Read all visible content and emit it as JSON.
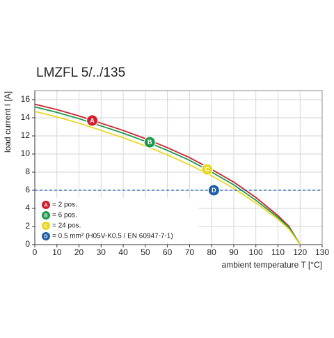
{
  "chart_data": {
    "type": "line",
    "title": "LMZFL 5/../135",
    "x_label": "ambient temperature T [°C]",
    "y_label": "load current I [A]",
    "xlim": [
      0,
      130
    ],
    "ylim": [
      0,
      17
    ],
    "xticks": [
      0,
      10,
      20,
      30,
      40,
      50,
      60,
      70,
      80,
      90,
      100,
      110,
      120,
      130
    ],
    "yticks": [
      0,
      2,
      4,
      6,
      8,
      10,
      12,
      14,
      16
    ],
    "grid": true,
    "series": [
      {
        "name": "= 2 pos.",
        "color": "#d0202e",
        "x": [
          0,
          10,
          20,
          30,
          40,
          50,
          60,
          70,
          80,
          90,
          100,
          110,
          115,
          120
        ],
        "values": [
          15.5,
          14.9,
          14.2,
          13.4,
          12.6,
          11.7,
          10.7,
          9.6,
          8.3,
          6.9,
          5.2,
          3.2,
          2.0,
          0
        ],
        "marker": {
          "label": "A",
          "x": 26,
          "y": 13.7
        }
      },
      {
        "name": "= 6 pos.",
        "color": "#1a9a4a",
        "x": [
          0,
          10,
          20,
          30,
          40,
          50,
          60,
          70,
          80,
          90,
          100,
          110,
          115,
          120
        ],
        "values": [
          15.2,
          14.6,
          13.9,
          13.1,
          12.3,
          11.4,
          10.4,
          9.3,
          8.0,
          6.6,
          4.9,
          3.0,
          1.9,
          0
        ],
        "marker": {
          "label": "B",
          "x": 52,
          "y": 11.3
        }
      },
      {
        "name": "= 24 pos.",
        "color": "#e8d81e",
        "x": [
          0,
          10,
          20,
          30,
          40,
          50,
          60,
          70,
          80,
          90,
          100,
          110,
          115,
          120
        ],
        "values": [
          14.7,
          14.1,
          13.4,
          12.6,
          11.8,
          10.9,
          9.9,
          8.8,
          7.6,
          6.2,
          4.6,
          2.8,
          1.7,
          0
        ],
        "marker": {
          "label": "C",
          "x": 78,
          "y": 8.3
        }
      },
      {
        "name": "= 0.5 mm² (H05V-K0.5 / EN 60947-7-1)",
        "color": "#1e5fa8",
        "dashed": true,
        "x": [
          0,
          130
        ],
        "values": [
          6,
          6
        ],
        "marker": {
          "label": "D",
          "x": 81,
          "y": 6
        }
      }
    ]
  }
}
